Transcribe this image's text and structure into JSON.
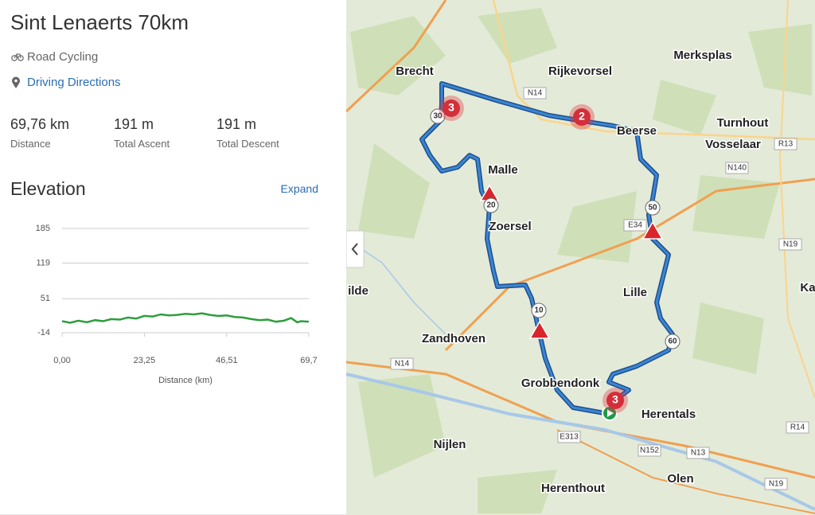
{
  "header": {
    "title": "Sint Lenaerts 70km",
    "activity": "Road Cycling",
    "directions": "Driving Directions",
    "elevation_title": "Elevation",
    "expand": "Expand"
  },
  "stats": [
    {
      "value": "69,76 km",
      "label": "Distance"
    },
    {
      "value": "191 m",
      "label": "Total Ascent"
    },
    {
      "value": "191 m",
      "label": "Total Descent"
    }
  ],
  "chart_data": {
    "type": "line",
    "xlabel": "Distance (km)",
    "x": [
      0,
      2.3,
      4.6,
      7,
      9.3,
      11.6,
      13.9,
      16.3,
      18.6,
      20.9,
      23.2,
      25.6,
      27.9,
      30.2,
      32.5,
      34.9,
      37.2,
      39.5,
      41.8,
      44.2,
      46.5,
      48.8,
      51.1,
      53.5,
      55.8,
      58.1,
      60.4,
      62.7,
      64.7,
      66.4,
      67.5,
      69.7
    ],
    "series": [
      {
        "name": "Elevation",
        "color": "#2e9e3e",
        "values": [
          8,
          5,
          9,
          6,
          10,
          8,
          12,
          11,
          15,
          13,
          18,
          17,
          21,
          19,
          20,
          22,
          21,
          23,
          20,
          18,
          19,
          16,
          15,
          12,
          10,
          11,
          7,
          9,
          14,
          6,
          8,
          7
        ]
      }
    ],
    "xlim": [
      0,
      69.7
    ],
    "ylim": [
      -14,
      185
    ],
    "yticks": [
      -14,
      51,
      119,
      185
    ],
    "xticks": [
      {
        "value": 0,
        "label": "0,00"
      },
      {
        "value": 23.25,
        "label": "23,25"
      },
      {
        "value": 46.51,
        "label": "46,51"
      },
      {
        "value": 69.7,
        "label": "69,7"
      }
    ]
  },
  "map": {
    "places": [
      "Brecht",
      "Rijkevorsel",
      "Merksplas",
      "Turnhout",
      "Beerse",
      "Vosselaar",
      "Malle",
      "Zoersel",
      "Lille",
      "Zandhoven",
      "Grobbendonk",
      "Herentals",
      "Nijlen",
      "Herenthout",
      "Olen",
      "ilde",
      "Ka"
    ],
    "roads": [
      "N14",
      "R13",
      "N140",
      "E34",
      "N19",
      "N14",
      "E313",
      "N152",
      "N13",
      "R14",
      "N19"
    ],
    "km_markers": [
      "30",
      "20",
      "10",
      "50",
      "60"
    ],
    "clusters": [
      "3",
      "2",
      "3"
    ]
  }
}
